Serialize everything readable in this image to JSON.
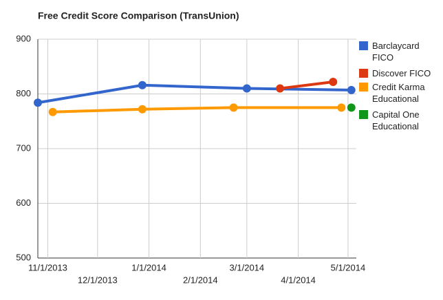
{
  "chart_data": {
    "type": "line",
    "title": "Free Credit Score Comparison (TransUnion)",
    "xlim": [
      "2013-10-26",
      "2014-05-06"
    ],
    "xticks": [
      {
        "value": "2013-11-01",
        "label": "11/1/2013"
      },
      {
        "value": "2013-12-01",
        "label": "12/1/2013"
      },
      {
        "value": "2014-01-01",
        "label": "1/1/2014"
      },
      {
        "value": "2014-02-01",
        "label": "2/1/2014"
      },
      {
        "value": "2014-03-01",
        "label": "3/1/2014"
      },
      {
        "value": "2014-04-01",
        "label": "4/1/2014"
      },
      {
        "value": "2014-05-01",
        "label": "5/1/2014"
      }
    ],
    "ylim": [
      500,
      900
    ],
    "yticks": [
      500,
      600,
      700,
      800,
      900
    ],
    "grid": true,
    "series": [
      {
        "name": "Barclaycard FICO",
        "color": "#3366cc",
        "x": [
          "2013-10-26",
          "2013-12-28",
          "2014-03-01",
          "2014-05-03"
        ],
        "values": [
          784,
          816,
          810,
          807
        ]
      },
      {
        "name": "Discover FICO",
        "color": "#dc3912",
        "x": [
          "2014-03-21",
          "2014-04-22"
        ],
        "values": [
          810,
          822
        ]
      },
      {
        "name": "Credit Karma Educational",
        "color": "#ff9900",
        "x": [
          "2013-11-04",
          "2013-12-28",
          "2014-02-21",
          "2014-04-27"
        ],
        "values": [
          767,
          772,
          775,
          775
        ]
      },
      {
        "name": "Capital One Educational",
        "color": "#109618",
        "x": [
          "2014-05-03"
        ],
        "values": [
          775
        ]
      }
    ]
  }
}
